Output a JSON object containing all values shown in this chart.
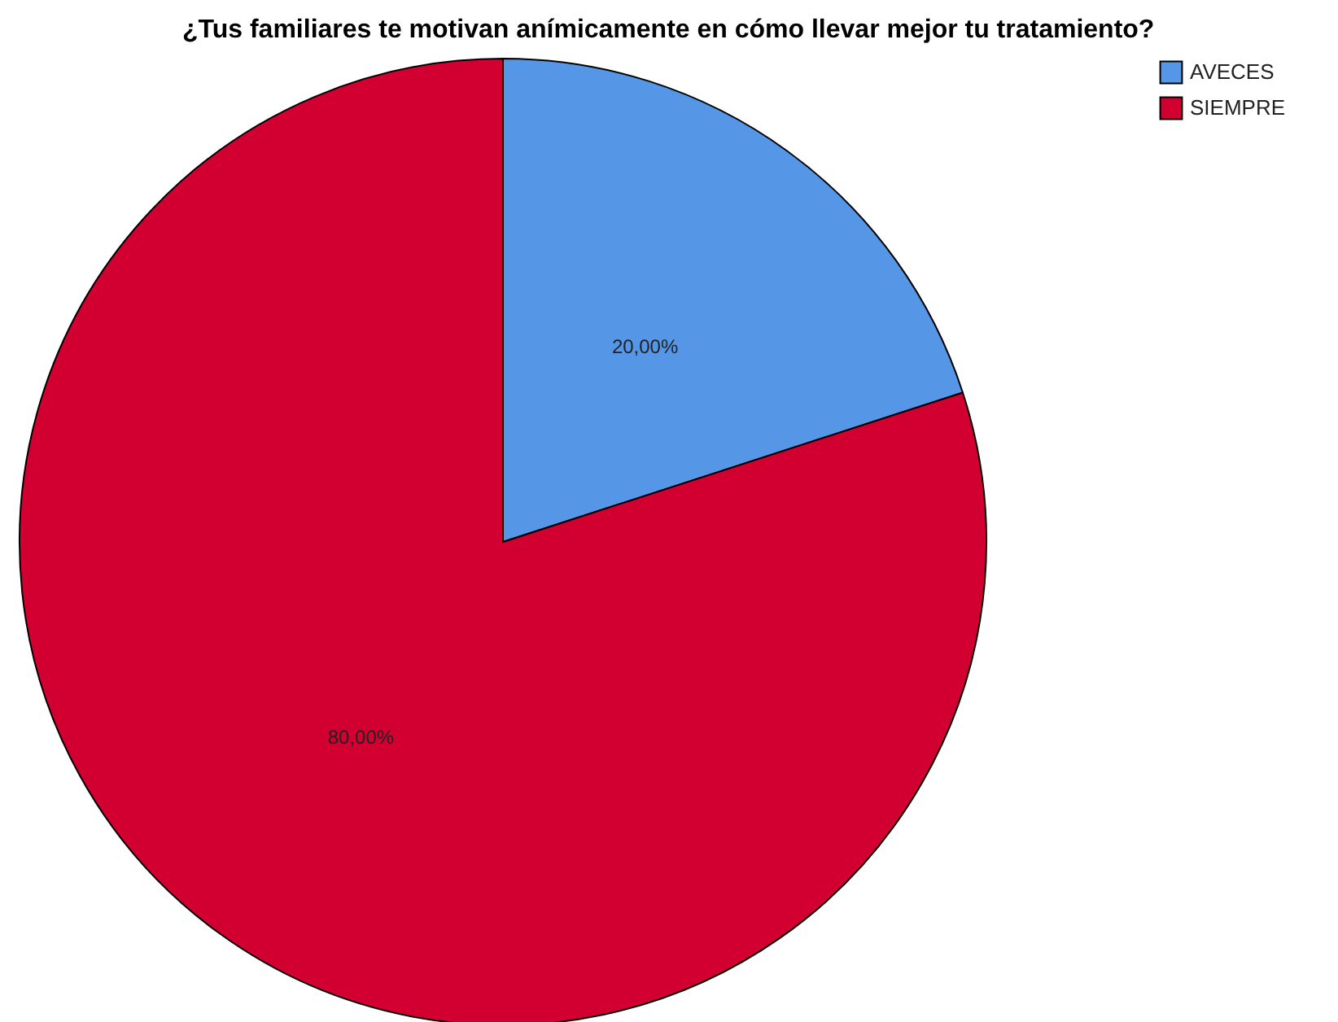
{
  "chart_data": {
    "type": "pie",
    "title": "¿Tus familiares te motivan anímicamente en cómo llevar mejor tu tratamiento?",
    "categories": [
      "AVECES",
      "SIEMPRE"
    ],
    "values": [
      20,
      80
    ],
    "colors": [
      "#5596e6",
      "#d20030"
    ],
    "value_labels": [
      "20,00%",
      "80,00%"
    ],
    "legend": "top right"
  }
}
